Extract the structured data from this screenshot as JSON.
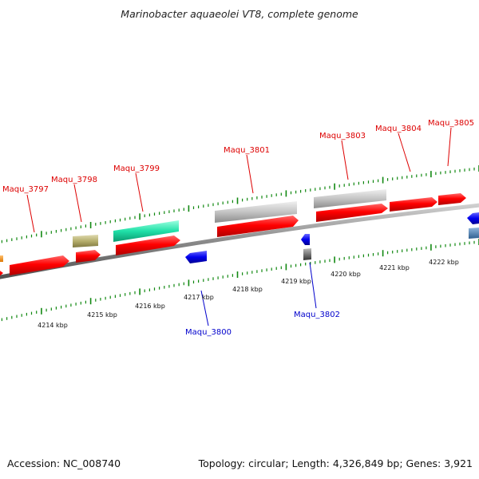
{
  "title": "Marinobacter aquaeolei VT8, complete genome",
  "footer": {
    "accession": "Accession: NC_008740",
    "summary": "Topology: circular; Length: 4,326,849 bp; Genes: 3,921"
  },
  "colors": {
    "forward_gene": "#ff0000",
    "reverse_gene": "#0000ee",
    "pseudo_gene": "#c0c0c0",
    "trna": "#b5ae6c",
    "rrna": "#20e0a8",
    "misc": "#ff9900",
    "misc2": "#4a7fb5",
    "ruler_ticks": "#118811",
    "backbone": "#888888"
  },
  "scale": {
    "upper_ticks": [],
    "lower_ticks": [
      "4214 kbp",
      "4215 kbp",
      "4216 kbp",
      "4217 kbp",
      "4218 kbp",
      "4219 kbp",
      "4220 kbp",
      "4221 kbp",
      "4222 kbp"
    ]
  },
  "genes": {
    "forward": [
      "Maqu_3797",
      "Maqu_3798",
      "Maqu_3799",
      "Maqu_3801",
      "Maqu_3803",
      "Maqu_3804",
      "Maqu_3805"
    ],
    "reverse": [
      "Maqu_3800",
      "Maqu_3802"
    ]
  }
}
